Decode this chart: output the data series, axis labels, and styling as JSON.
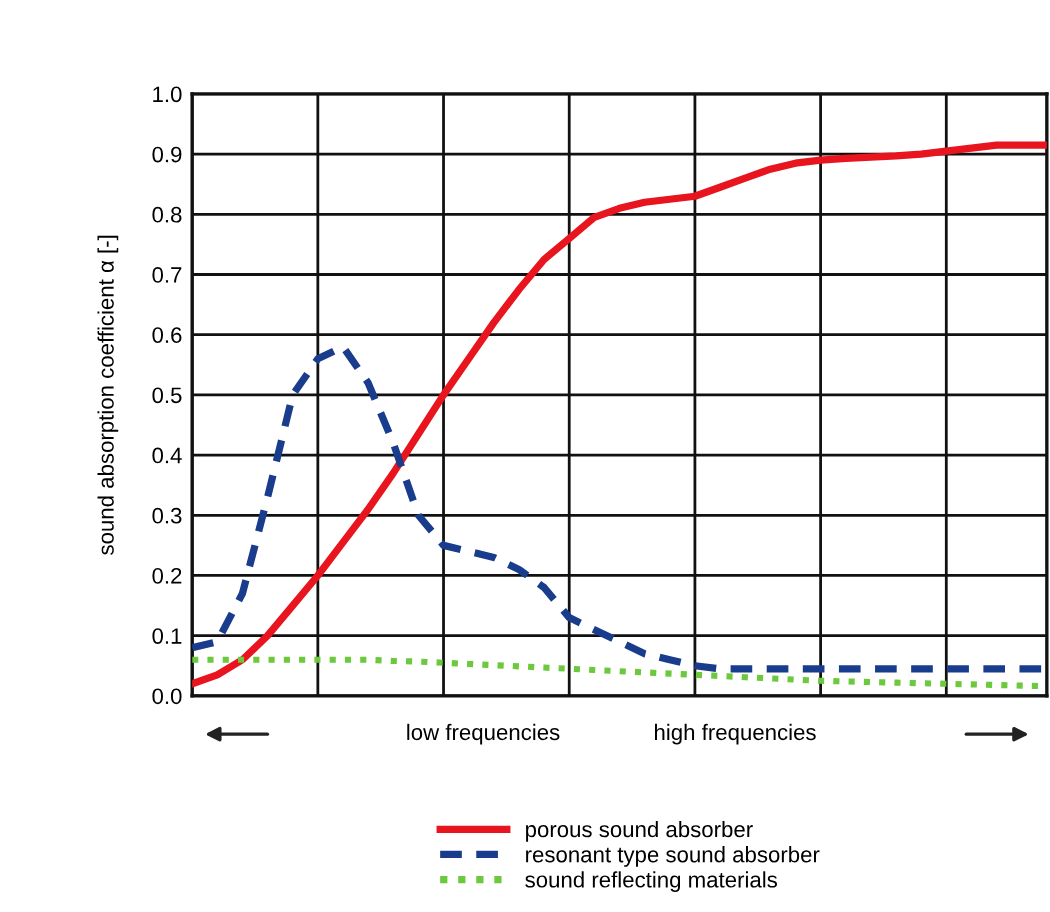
{
  "chart_data": {
    "type": "line",
    "ylabel": "sound absorption coefficient α [-]",
    "categories": [
      null,
      null,
      null,
      null,
      null,
      null,
      null,
      null,
      null,
      null,
      null,
      null,
      null,
      null,
      null,
      null,
      null,
      null,
      null,
      null,
      null,
      null,
      null,
      null,
      null,
      null,
      null,
      null,
      null,
      null,
      null,
      null,
      null,
      null,
      null
    ],
    "ylim": [
      0,
      1
    ],
    "yticks": [
      {
        "value": 0,
        "label": "0.0"
      },
      {
        "value": 0.1,
        "label": "0.1"
      },
      {
        "value": 0.2,
        "label": "0.2"
      },
      {
        "value": 0.3,
        "label": "0.3"
      },
      {
        "value": 0.4,
        "label": "0.4"
      },
      {
        "value": 0.5,
        "label": "0.5"
      },
      {
        "value": 0.6,
        "label": "0.6"
      },
      {
        "value": 0.7,
        "label": "0.7"
      },
      {
        "value": 0.8,
        "label": "0.8"
      },
      {
        "value": 0.9,
        "label": "0.9"
      },
      {
        "value": 1,
        "label": "1.0"
      }
    ],
    "grid": true,
    "legend": "bottom",
    "marker": "none",
    "annotations": [
      "low frequencies",
      "high frequencies"
    ],
    "series": [
      {
        "name": "porous sound absorber",
        "color": "#e8141e",
        "line_style": "solid",
        "values": [
          0.02,
          0.035,
          0.06,
          0.1,
          0.15,
          0.2,
          0.255,
          0.31,
          0.37,
          0.435,
          0.5,
          0.56,
          0.62,
          0.675,
          0.725,
          0.76,
          0.795,
          0.81,
          0.82,
          0.825,
          0.83,
          0.845,
          0.86,
          0.875,
          0.885,
          0.89,
          0.893,
          0.895,
          0.897,
          0.9,
          0.905,
          0.91,
          0.915,
          0.915,
          0.915
        ]
      },
      {
        "name": "resonant type sound absorber",
        "color": "#1a3c8c",
        "line_style": "dashed",
        "values": [
          0.08,
          0.09,
          0.17,
          0.33,
          0.5,
          0.56,
          0.58,
          0.52,
          0.42,
          0.3,
          0.25,
          0.24,
          0.23,
          0.21,
          0.18,
          0.13,
          0.11,
          0.09,
          0.07,
          0.06,
          0.05,
          0.045,
          0.045,
          0.045,
          0.045,
          0.045,
          0.045,
          0.045,
          0.045,
          0.045,
          0.045,
          0.045,
          0.045,
          0.045,
          0.045
        ]
      },
      {
        "name": "sound reflecting materials",
        "color": "#6cc83c",
        "line_style": "dotted",
        "values": [
          0.06,
          0.06,
          0.06,
          0.06,
          0.06,
          0.06,
          0.06,
          0.06,
          0.058,
          0.057,
          0.055,
          0.053,
          0.051,
          0.049,
          0.047,
          0.045,
          0.043,
          0.041,
          0.039,
          0.037,
          0.035,
          0.033,
          0.031,
          0.029,
          0.027,
          0.025,
          0.024,
          0.023,
          0.022,
          0.021,
          0.02,
          0.019,
          0.018,
          0.017,
          0.016
        ]
      }
    ]
  }
}
